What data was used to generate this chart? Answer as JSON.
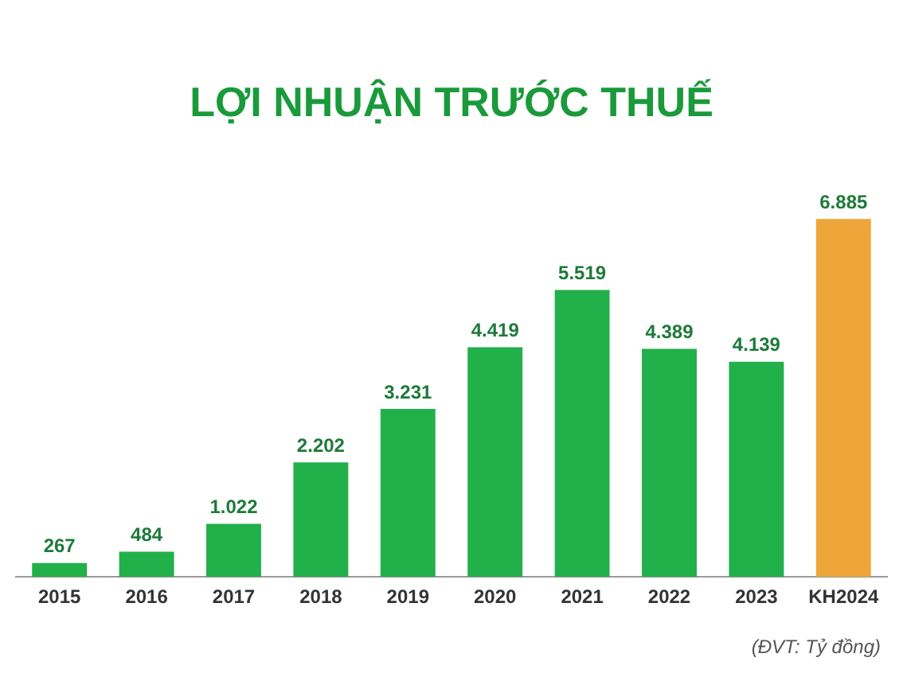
{
  "chart_data": {
    "type": "bar",
    "title": "LỢI NHUẬN TRƯỚC THUẾ",
    "categories": [
      "2015",
      "2016",
      "2017",
      "2018",
      "2019",
      "2020",
      "2021",
      "2022",
      "2023",
      "KH2024"
    ],
    "values": [
      267,
      484,
      1022,
      2202,
      3231,
      4419,
      5519,
      4389,
      4139,
      6885
    ],
    "value_labels": [
      "267",
      "484",
      "1.022",
      "2.202",
      "3.231",
      "4.419",
      "5.519",
      "4.389",
      "4.139",
      "6.885"
    ],
    "colors": [
      "#22b04b",
      "#22b04b",
      "#22b04b",
      "#22b04b",
      "#22b04b",
      "#22b04b",
      "#22b04b",
      "#22b04b",
      "#22b04b",
      "#eea63a"
    ],
    "annotations": [
      "(ĐVT: Tỷ đồng)"
    ],
    "grid": false,
    "legend": false
  }
}
